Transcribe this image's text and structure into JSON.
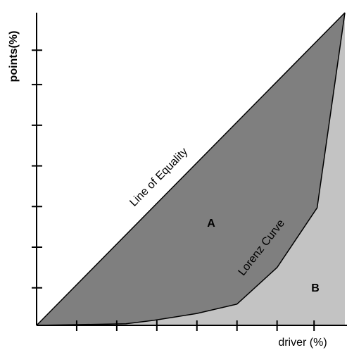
{
  "chart_data": {
    "type": "line",
    "x_label": "driver (%)",
    "y_label": "points(%)",
    "xlim": [
      0,
      100
    ],
    "ylim": [
      0,
      100
    ],
    "xticks": [
      13,
      26,
      39,
      52,
      65,
      78,
      90
    ],
    "yticks": [
      12,
      25,
      38,
      51,
      64,
      77,
      88
    ],
    "series": [
      {
        "name": "Line of Equality",
        "color": "#7f7f7f",
        "x": [
          0,
          100
        ],
        "values": [
          0,
          100
        ]
      },
      {
        "name": "Lorenz Curve",
        "color": "#c3c3c3",
        "x": [
          0,
          29,
          38,
          52,
          65,
          78,
          91,
          100
        ],
        "values": [
          0,
          0.5,
          1.6,
          3.8,
          6.8,
          18.5,
          37.6,
          100
        ]
      }
    ],
    "annotations": [
      "A",
      "B"
    ]
  }
}
